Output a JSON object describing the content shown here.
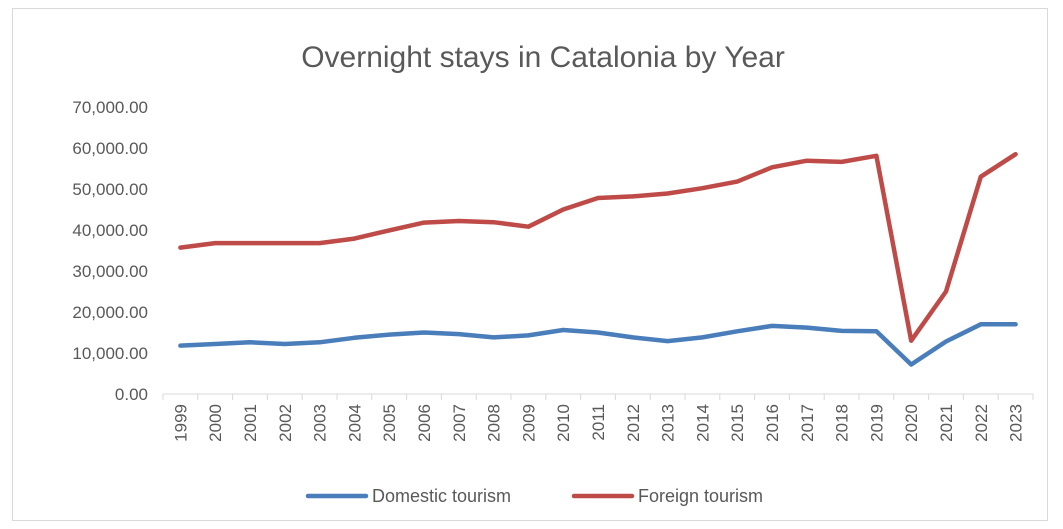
{
  "chart_data": {
    "type": "line",
    "title": "Overnight stays in Catalonia by Year",
    "categories": [
      "1999",
      "2000",
      "2001",
      "2002",
      "2003",
      "2004",
      "2005",
      "2006",
      "2007",
      "2008",
      "2009",
      "2010",
      "2011",
      "2012",
      "2013",
      "2014",
      "2015",
      "2016",
      "2017",
      "2018",
      "2019",
      "2020",
      "2021",
      "2022",
      "2023"
    ],
    "series": [
      {
        "name": "Domestic tourism",
        "color": "#4a7ebb",
        "values": [
          11800,
          12200,
          12600,
          12200,
          12600,
          13700,
          14500,
          15000,
          14600,
          13800,
          14300,
          15600,
          15000,
          13800,
          12900,
          13800,
          15300,
          16600,
          16200,
          15400,
          15300,
          7200,
          12800,
          17000,
          17000
        ]
      },
      {
        "name": "Foreign tourism",
        "color": "#be4b48",
        "values": [
          35700,
          36800,
          36800,
          36800,
          36800,
          37900,
          39900,
          41800,
          42200,
          41900,
          40800,
          45000,
          47800,
          48200,
          48900,
          50200,
          51800,
          55300,
          56900,
          56600,
          58100,
          13000,
          25000,
          53000,
          58500
        ]
      }
    ],
    "y_ticks": [
      "0.00",
      "10,000.00",
      "20,000.00",
      "30,000.00",
      "40,000.00",
      "50,000.00",
      "60,000.00",
      "70,000.00"
    ],
    "ylim": [
      0,
      70000
    ],
    "grid": false,
    "legend_position": "bottom"
  }
}
